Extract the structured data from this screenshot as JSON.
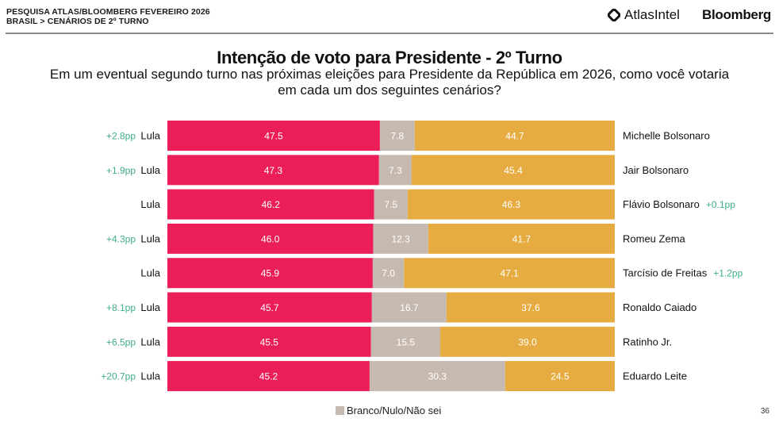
{
  "header": {
    "line1": "PESQUISA ATLAS/BLOOMBERG FEVEREIRO 2026",
    "line2": "BRASIL > CENÁRIOS DE 2º TURNO",
    "brand_atlas": "AtlasIntel",
    "brand_bloomberg": "Bloomberg",
    "atlas_icon": "atlasintel-logo-icon"
  },
  "title": "Intenção de voto para Presidente - 2º Turno",
  "subtitle": "Em um eventual segundo turno nas próximas eleições para Presidente da República em 2026, como você votaria em cada um dos seguintes cenários?",
  "legend": {
    "label": "Branco/Nulo/Não sei",
    "color": "#c6b9b0"
  },
  "page_number": "36",
  "colors": {
    "lula": "#ec1e5a",
    "other": "#e6ac41",
    "blank": "#c6b9b0",
    "delta": "#3fae8c"
  },
  "chart_data": {
    "type": "bar",
    "orientation": "horizontal-stacked-100",
    "title": "Intenção de voto para Presidente - 2º Turno",
    "xlabel": "",
    "ylabel": "",
    "xlim": [
      0,
      100
    ],
    "grid": false,
    "legend_position": "bottom",
    "series_names": [
      "Lula",
      "Branco/Nulo/Não sei",
      "Oponente"
    ],
    "rows": [
      {
        "left": "Lula",
        "right": "Michelle Bolsonaro",
        "lula": 47.5,
        "blank": 7.8,
        "other": 44.7,
        "left_delta": "+2.8pp",
        "right_delta": ""
      },
      {
        "left": "Lula",
        "right": "Jair Bolsonaro",
        "lula": 47.3,
        "blank": 7.3,
        "other": 45.4,
        "left_delta": "+1.9pp",
        "right_delta": ""
      },
      {
        "left": "Lula",
        "right": "Flávio Bolsonaro",
        "lula": 46.2,
        "blank": 7.5,
        "other": 46.3,
        "left_delta": "",
        "right_delta": "+0.1pp"
      },
      {
        "left": "Lula",
        "right": "Romeu Zema",
        "lula": 46.0,
        "blank": 12.3,
        "other": 41.7,
        "left_delta": "+4.3pp",
        "right_delta": ""
      },
      {
        "left": "Lula",
        "right": "Tarcísio de Freitas",
        "lula": 45.9,
        "blank": 7.0,
        "other": 47.1,
        "left_delta": "",
        "right_delta": "+1.2pp"
      },
      {
        "left": "Lula",
        "right": "Ronaldo Caiado",
        "lula": 45.7,
        "blank": 16.7,
        "other": 37.6,
        "left_delta": "+8.1pp",
        "right_delta": ""
      },
      {
        "left": "Lula",
        "right": "Ratinho Jr.",
        "lula": 45.5,
        "blank": 15.5,
        "other": 39.0,
        "left_delta": "+6.5pp",
        "right_delta": ""
      },
      {
        "left": "Lula",
        "right": "Eduardo Leite",
        "lula": 45.2,
        "blank": 30.3,
        "other": 24.5,
        "left_delta": "+20.7pp",
        "right_delta": ""
      }
    ]
  }
}
